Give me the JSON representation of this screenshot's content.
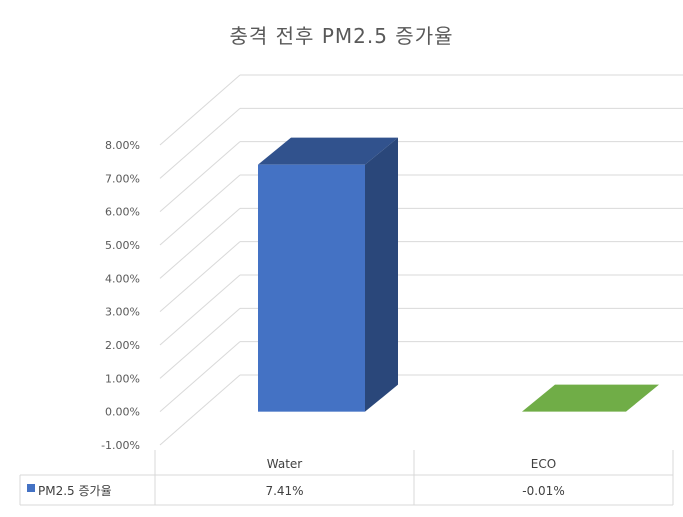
{
  "chart_data": {
    "type": "bar",
    "title": "충격 전후 PM2.5 증가율",
    "categories": [
      "Water",
      "ECO"
    ],
    "series": [
      {
        "name": "PM2.5 증가율",
        "values": [
          7.41,
          -0.01
        ],
        "value_labels": [
          "7.41%",
          "-0.01%"
        ],
        "colors": [
          "#4472C4",
          "#70AD47"
        ]
      }
    ],
    "ylim": [
      -1,
      8
    ],
    "yticks": [
      "8.00%",
      "7.00%",
      "6.00%",
      "5.00%",
      "4.00%",
      "3.00%",
      "2.00%",
      "1.00%",
      "0.00%",
      "-1.00%"
    ],
    "ytick_values": [
      8,
      7,
      6,
      5,
      4,
      3,
      2,
      1,
      0,
      -1
    ],
    "grid": true,
    "style": "3d-column",
    "legend": "data-table",
    "legend_color": "#4472C4"
  }
}
